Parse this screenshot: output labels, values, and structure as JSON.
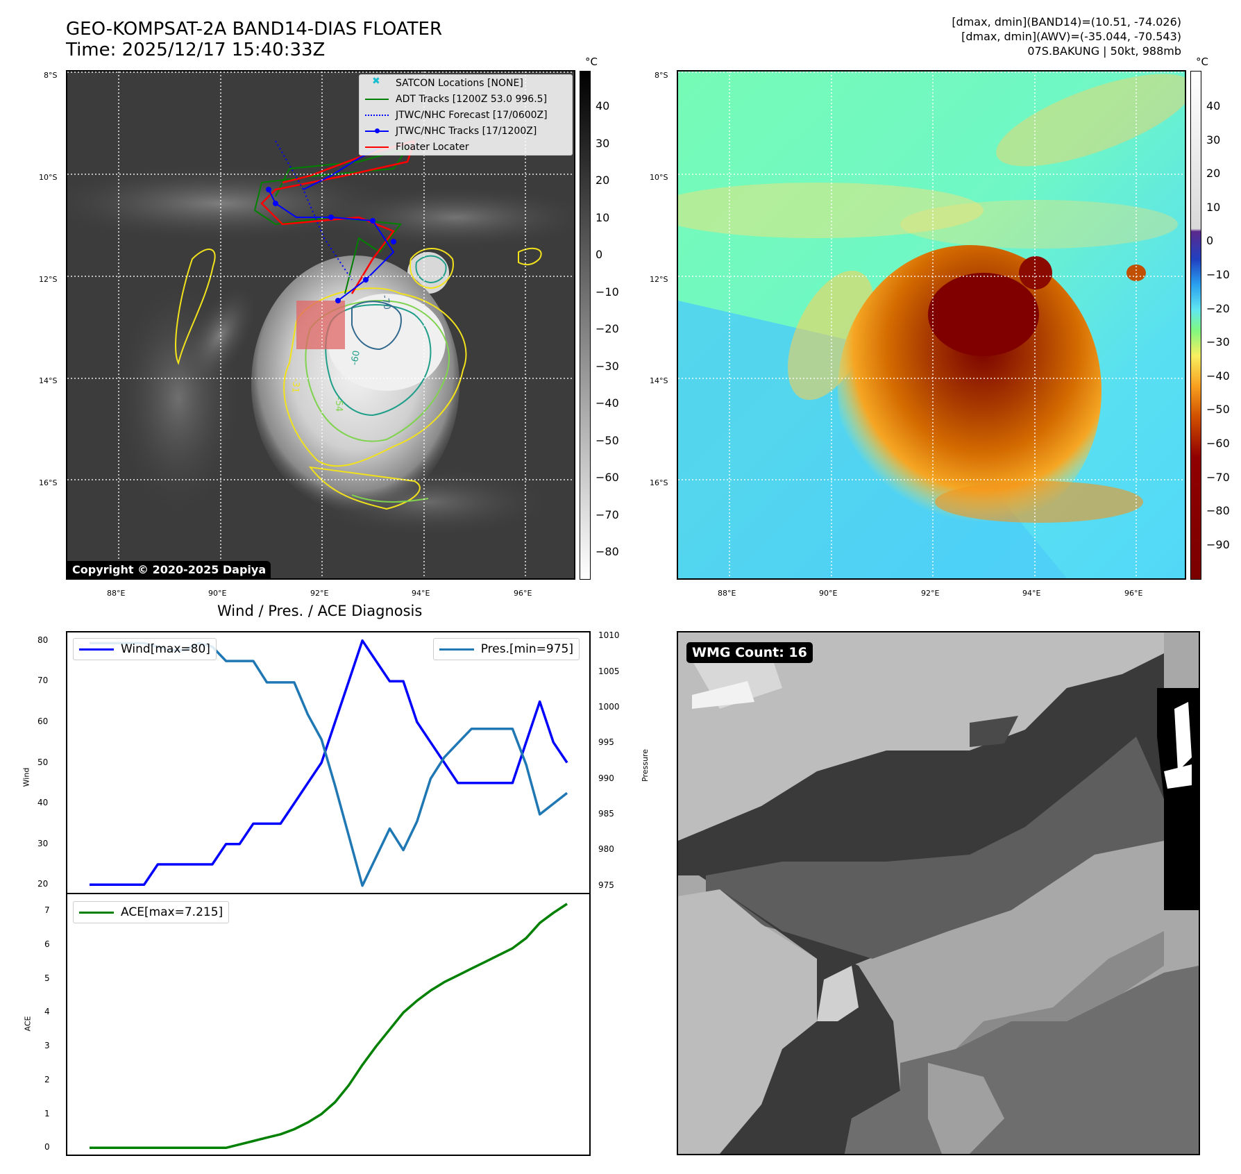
{
  "header": {
    "title": "GEO-KOMPSAT-2A BAND14-DIAS FLOATER",
    "time": "Time: 2025/12/17 15:40:33Z",
    "stats_line1": "[dmax, dmin](BAND14)=(10.51, -74.026)",
    "stats_line2": "[dmax, dmin](AWV)=(-35.044, -70.543)",
    "stats_line3": "07S.BAKUNG | 50kt, 988mb"
  },
  "map": {
    "lat_labels": [
      "8°S",
      "10°S",
      "12°S",
      "14°S",
      "16°S"
    ],
    "lon_labels": [
      "88°E",
      "90°E",
      "92°E",
      "94°E",
      "96°E"
    ],
    "copyright": "Copyright © 2020-2025 Dapiya",
    "contour_labels": [
      "-70",
      "-60",
      "-54",
      "-31"
    ],
    "legend": [
      {
        "label": "SATCON Locations [NONE]",
        "color": "#17becf",
        "style": "x"
      },
      {
        "label": "ADT Tracks [1200Z 53.0 996.5]",
        "color": "#008000",
        "style": "solid"
      },
      {
        "label": "JTWC/NHC Forecast [17/0600Z]",
        "color": "#0000ff",
        "style": "dotted"
      },
      {
        "label": "JTWC/NHC Tracks [17/1200Z]",
        "color": "#0000ff",
        "style": "marker"
      },
      {
        "label": "Floater Locater",
        "color": "#ff0000",
        "style": "solid"
      }
    ]
  },
  "colorbar_gray": {
    "unit": "°C",
    "ticks": [
      "40",
      "30",
      "20",
      "10",
      "0",
      "−10",
      "−20",
      "−30",
      "−40",
      "−50",
      "−60",
      "−70",
      "−80"
    ]
  },
  "colorbar_color": {
    "unit": "°C",
    "ticks": [
      "40",
      "30",
      "20",
      "10",
      "0",
      "−10",
      "−20",
      "−30",
      "−40",
      "−50",
      "−60",
      "−70",
      "−80",
      "−90"
    ]
  },
  "diagnosis_title": "Wind / Pres. / ACE Diagnosis",
  "wmg_label": "WMG Count: 16",
  "chart_data": [
    {
      "type": "line",
      "title": "Wind / Pres. / ACE Diagnosis",
      "ylabel": "Wind",
      "ylabel_right": "Pressure",
      "ylim": [
        18,
        82
      ],
      "ylim_right": [
        974,
        1010.5
      ],
      "yticks": [
        20,
        30,
        40,
        50,
        60,
        70,
        80
      ],
      "yticks_right": [
        975,
        980,
        985,
        990,
        995,
        1000,
        1005,
        1010
      ],
      "x": [
        0,
        1,
        2,
        3,
        4,
        5,
        6,
        7,
        8,
        9,
        10,
        11,
        12,
        13,
        14,
        15,
        16,
        17,
        18,
        19,
        20,
        21,
        22,
        23,
        24,
        25,
        26,
        27,
        28,
        29,
        30,
        31,
        32,
        33,
        34,
        35
      ],
      "series": [
        {
          "name": "Wind[max=80]",
          "color": "#0000ff",
          "axis": "left",
          "values": [
            20,
            20,
            20,
            20,
            20,
            25,
            25,
            25,
            25,
            25,
            30,
            30,
            35,
            35,
            35,
            40,
            45,
            50,
            60,
            70,
            80,
            75,
            70,
            70,
            60,
            55,
            50,
            45,
            45,
            45,
            45,
            45,
            55,
            65,
            55,
            50
          ]
        },
        {
          "name": "Pres.[min=975]",
          "color": "#1f77b4",
          "axis": "right",
          "values": [
            1009,
            1009,
            1009,
            1009,
            1009,
            1008.5,
            1008,
            1008,
            1009,
            1008.5,
            1006.5,
            1006.5,
            1006.5,
            1003.5,
            1003.5,
            1003.5,
            999,
            995.5,
            989,
            982,
            975,
            979,
            983,
            980,
            984,
            990,
            993,
            995,
            997,
            997,
            997,
            997,
            992,
            985,
            986.5,
            988
          ]
        }
      ]
    },
    {
      "type": "line",
      "ylabel": "ACE",
      "ylim": [
        -0.2,
        7.5
      ],
      "yticks": [
        0,
        1,
        2,
        3,
        4,
        5,
        6,
        7
      ],
      "x": [
        0,
        1,
        2,
        3,
        4,
        5,
        6,
        7,
        8,
        9,
        10,
        11,
        12,
        13,
        14,
        15,
        16,
        17,
        18,
        19,
        20,
        21,
        22,
        23,
        24,
        25,
        26,
        27,
        28,
        29,
        30,
        31,
        32,
        33,
        34,
        35
      ],
      "series": [
        {
          "name": "ACE[max=7.215]",
          "color": "#008000",
          "values": [
            0,
            0,
            0,
            0,
            0,
            0,
            0,
            0,
            0,
            0,
            0,
            0.1,
            0.2,
            0.3,
            0.4,
            0.55,
            0.75,
            1.0,
            1.35,
            1.85,
            2.45,
            3.0,
            3.5,
            4.0,
            4.35,
            4.65,
            4.9,
            5.1,
            5.3,
            5.5,
            5.7,
            5.9,
            6.2,
            6.65,
            6.95,
            7.215
          ]
        }
      ]
    }
  ]
}
